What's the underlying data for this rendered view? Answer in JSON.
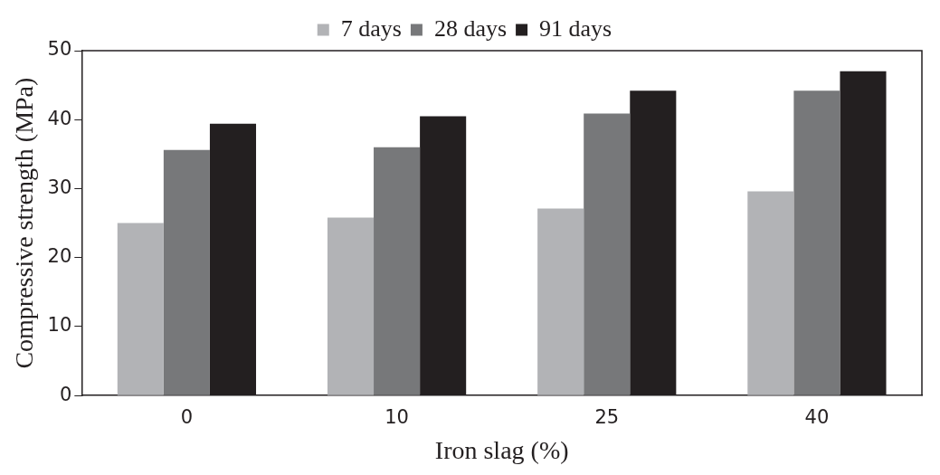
{
  "chart_data": {
    "type": "bar",
    "xlabel": "Iron slag (%)",
    "ylabel": "Compressive strength (MPa)",
    "categories": [
      "0",
      "10",
      "25",
      "40"
    ],
    "series": [
      {
        "name": "7 days",
        "color": "#b2b3b6",
        "values": [
          25.0,
          25.8,
          27.1,
          29.6
        ]
      },
      {
        "name": "28 days",
        "color": "#77787a",
        "values": [
          35.6,
          36.0,
          40.9,
          44.2
        ]
      },
      {
        "name": "91 days",
        "color": "#231f20",
        "values": [
          39.4,
          40.5,
          44.2,
          47.0
        ]
      }
    ],
    "ylim": [
      0,
      50
    ],
    "yticks": [
      0,
      10,
      20,
      30,
      40,
      50
    ],
    "grid": false,
    "legend": "top"
  }
}
